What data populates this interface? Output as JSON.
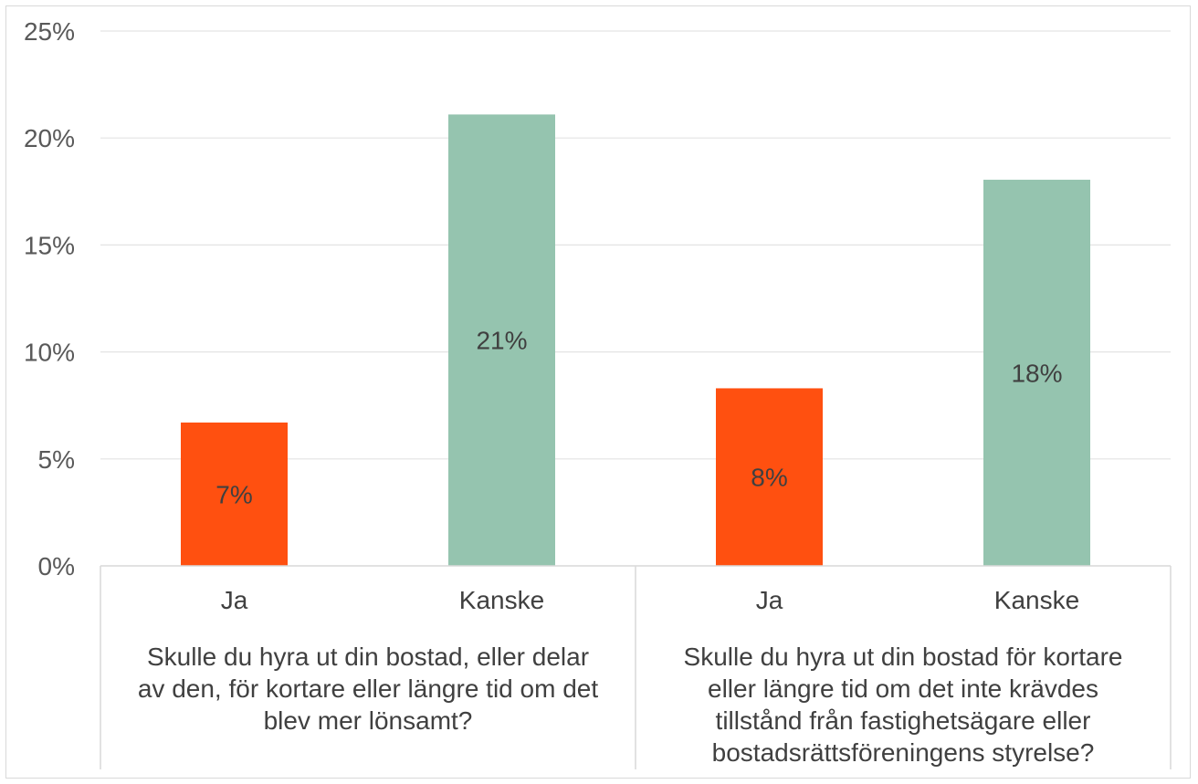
{
  "chart_data": {
    "type": "bar",
    "ylim": [
      0,
      25
    ],
    "yticks": [
      "0%",
      "5%",
      "10%",
      "15%",
      "20%",
      "25%"
    ],
    "grid": true,
    "groups": [
      {
        "title": "Skulle du hyra ut din bostad, eller delar av den, för kortare eller längre tid om det blev mer lönsamt?",
        "title_lines": [
          "Skulle du hyra ut din bostad, eller delar",
          "av den, för kortare eller längre tid om det",
          "blev mer lönsamt?"
        ],
        "bars": [
          {
            "category": "Ja",
            "value": 6.7,
            "label": "7%",
            "color": "#FF5010"
          },
          {
            "category": "Kanske",
            "value": 21.1,
            "label": "21%",
            "color": "#95C4AF"
          }
        ]
      },
      {
        "title": "Skulle du hyra ut din bostad för kortare eller längre tid om det inte krävdes tillstånd från fastighetsägare eller bostadsrättsföreningens styrelse?",
        "title_lines": [
          "Skulle du hyra ut din bostad för kortare",
          "eller längre tid om det inte krävdes",
          "tillstånd från fastighetsägare eller",
          "bostadsrättsföreningens styrelse?"
        ],
        "bars": [
          {
            "category": "Ja",
            "value": 8.3,
            "label": "8%",
            "color": "#FF5010"
          },
          {
            "category": "Kanske",
            "value": 18.05,
            "label": "18%",
            "color": "#95C4AF"
          }
        ]
      }
    ]
  }
}
